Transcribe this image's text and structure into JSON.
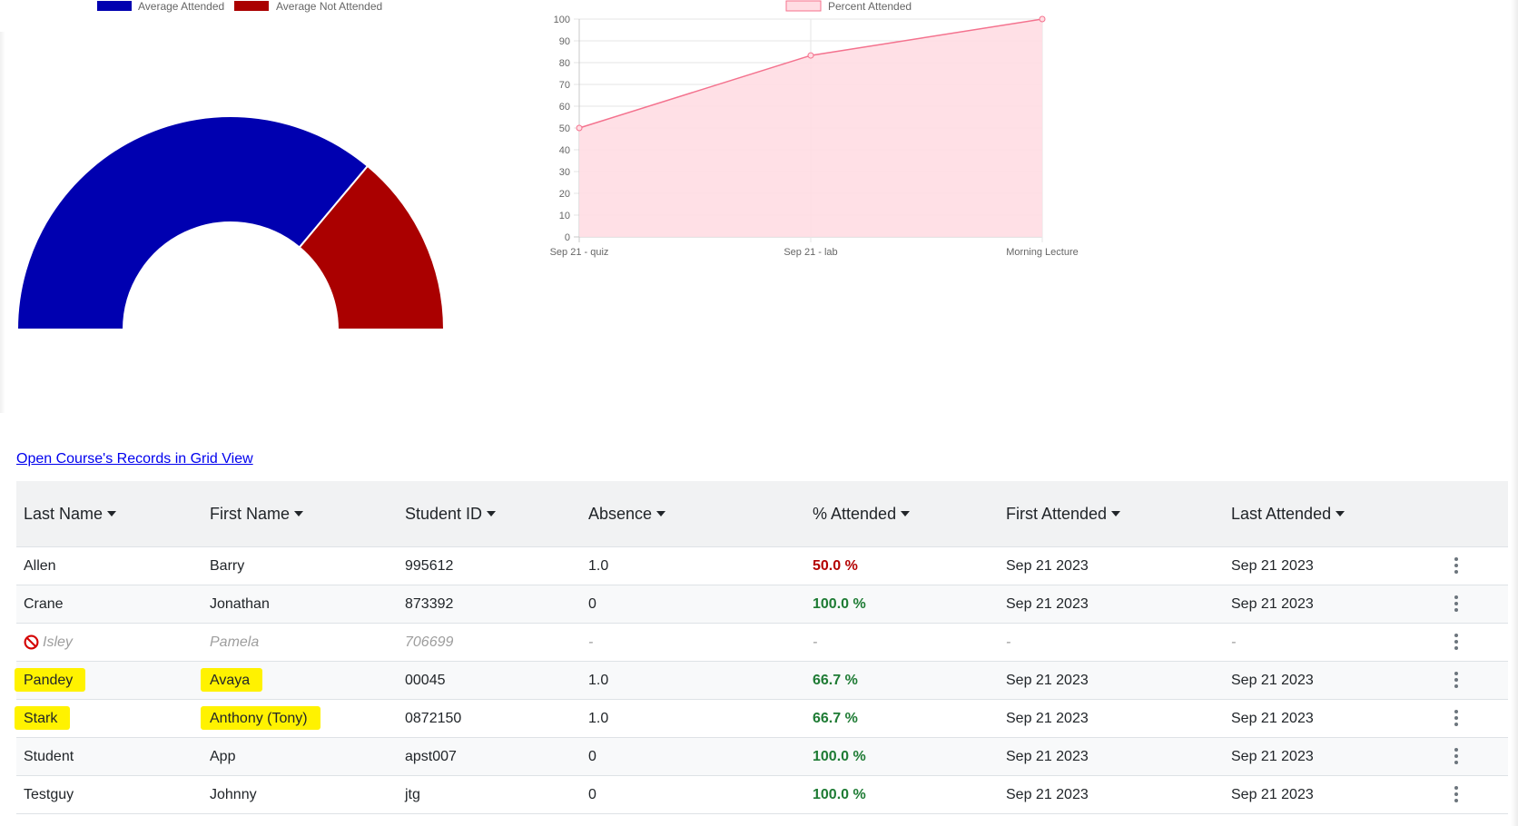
{
  "colors": {
    "attended": "#0000b0",
    "not_attended": "#aa0000",
    "line": "#f4728e",
    "line_fill": "#ffdde3",
    "pct_red": "#b40000",
    "pct_green": "#1e7b34",
    "highlight": "#fff200"
  },
  "chart_data": [
    {
      "type": "pie",
      "variant": "half-doughnut",
      "legend": [
        "Average Attended",
        "Average Not Attended"
      ],
      "legend_placement": "top",
      "labels": [
        "Average Attended",
        "Average Not Attended"
      ],
      "values": [
        72.2,
        27.8
      ]
    },
    {
      "type": "area",
      "legend": [
        "Percent Attended"
      ],
      "legend_placement": "top",
      "categories": [
        "Sep 21 - quiz",
        "Sep 21 - lab",
        "Morning Lecture"
      ],
      "series": [
        {
          "name": "Percent Attended",
          "values": [
            50,
            83.3,
            100
          ]
        }
      ],
      "ylim": [
        0,
        100
      ],
      "yticks": [
        0,
        10,
        20,
        30,
        40,
        50,
        60,
        70,
        80,
        90,
        100
      ],
      "grid": true
    }
  ],
  "links": {
    "grid_view": "Open Course's Records in Grid View"
  },
  "table": {
    "columns": [
      "Last Name",
      "First Name",
      "Student ID",
      "Absence",
      "% Attended",
      "First Attended",
      "Last Attended"
    ],
    "rows": [
      {
        "last": "Allen",
        "first": "Barry",
        "id": "995612",
        "absence": "1.0",
        "pct": "50.0 %",
        "pct_status": "red",
        "first_att": "Sep 21 2023",
        "last_att": "Sep 21 2023"
      },
      {
        "last": "Crane",
        "first": "Jonathan",
        "id": "873392",
        "absence": "0",
        "pct": "100.0 %",
        "pct_status": "green",
        "first_att": "Sep 21 2023",
        "last_att": "Sep 21 2023"
      },
      {
        "last": "Isley",
        "first": "Pamela",
        "id": "706699",
        "absence": "-",
        "pct": "-",
        "pct_status": "none",
        "first_att": "-",
        "last_att": "-",
        "inactive": true,
        "icon": "ban-icon"
      },
      {
        "last": "Pandey",
        "first": "Avaya",
        "id": "00045",
        "absence": "1.0",
        "pct": "66.7 %",
        "pct_status": "green",
        "first_att": "Sep 21 2023",
        "last_att": "Sep 21 2023",
        "highlighted": true
      },
      {
        "last": "Stark",
        "first": "Anthony (Tony)",
        "id": "0872150",
        "absence": "1.0",
        "pct": "66.7 %",
        "pct_status": "green",
        "first_att": "Sep 21 2023",
        "last_att": "Sep 21 2023",
        "highlighted": true
      },
      {
        "last": "Student",
        "first": "App",
        "id": "apst007",
        "absence": "0",
        "pct": "100.0 %",
        "pct_status": "green",
        "first_att": "Sep 21 2023",
        "last_att": "Sep 21 2023"
      },
      {
        "last": "Testguy",
        "first": "Johnny",
        "id": "jtg",
        "absence": "0",
        "pct": "100.0 %",
        "pct_status": "green",
        "first_att": "Sep 21 2023",
        "last_att": "Sep 21 2023"
      }
    ]
  }
}
